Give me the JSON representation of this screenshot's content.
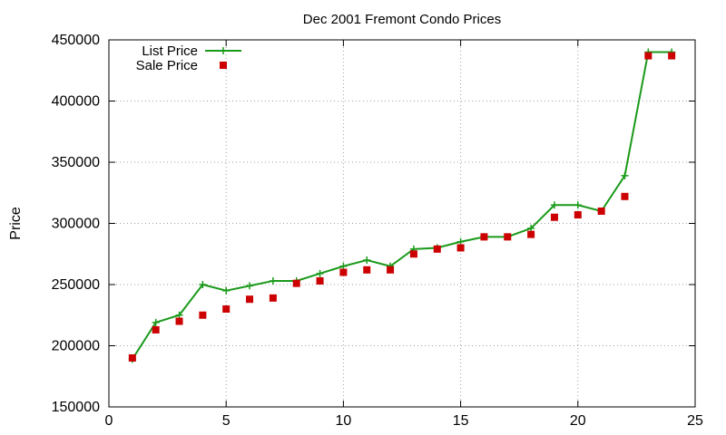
{
  "chart_data": {
    "type": "line",
    "title": "Dec 2001 Fremont Condo Prices",
    "ylabel": "Price",
    "xlabel": "",
    "xlim": [
      0,
      25
    ],
    "ylim": [
      150000,
      450000
    ],
    "xticks": [
      0,
      5,
      10,
      15,
      20,
      25
    ],
    "yticks": [
      150000,
      200000,
      250000,
      300000,
      350000,
      400000,
      450000
    ],
    "grid": true,
    "legend_position": "top-left",
    "series": [
      {
        "name": "List Price",
        "style": "linespoints",
        "marker": "plus",
        "color": "#1a9a1a",
        "points": [
          [
            1,
            189000
          ],
          [
            2,
            219000
          ],
          [
            3,
            225000
          ],
          [
            4,
            250000
          ],
          [
            5,
            245000
          ],
          [
            6,
            249000
          ],
          [
            7,
            253000
          ],
          [
            8,
            253000
          ],
          [
            9,
            259000
          ],
          [
            10,
            265000
          ],
          [
            11,
            270000
          ],
          [
            12,
            265000
          ],
          [
            13,
            279000
          ],
          [
            14,
            280000
          ],
          [
            15,
            285000
          ],
          [
            16,
            289000
          ],
          [
            17,
            289000
          ],
          [
            18,
            296000
          ],
          [
            19,
            315000
          ],
          [
            20,
            315000
          ],
          [
            21,
            310000
          ],
          [
            22,
            339000
          ],
          [
            23,
            440000
          ],
          [
            24,
            440000
          ]
        ]
      },
      {
        "name": "Sale Price",
        "style": "points",
        "marker": "square",
        "color": "#cc0000",
        "points": [
          [
            1,
            190000
          ],
          [
            2,
            213000
          ],
          [
            3,
            220000
          ],
          [
            4,
            225000
          ],
          [
            5,
            230000
          ],
          [
            6,
            238000
          ],
          [
            7,
            239000
          ],
          [
            8,
            251000
          ],
          [
            9,
            253000
          ],
          [
            10,
            260000
          ],
          [
            11,
            262000
          ],
          [
            12,
            262000
          ],
          [
            13,
            275000
          ],
          [
            14,
            279000
          ],
          [
            15,
            280000
          ],
          [
            16,
            289000
          ],
          [
            17,
            289000
          ],
          [
            18,
            291000
          ],
          [
            19,
            305000
          ],
          [
            20,
            307000
          ],
          [
            21,
            310000
          ],
          [
            22,
            322000
          ],
          [
            23,
            437000
          ],
          [
            24,
            437000
          ]
        ]
      }
    ]
  }
}
